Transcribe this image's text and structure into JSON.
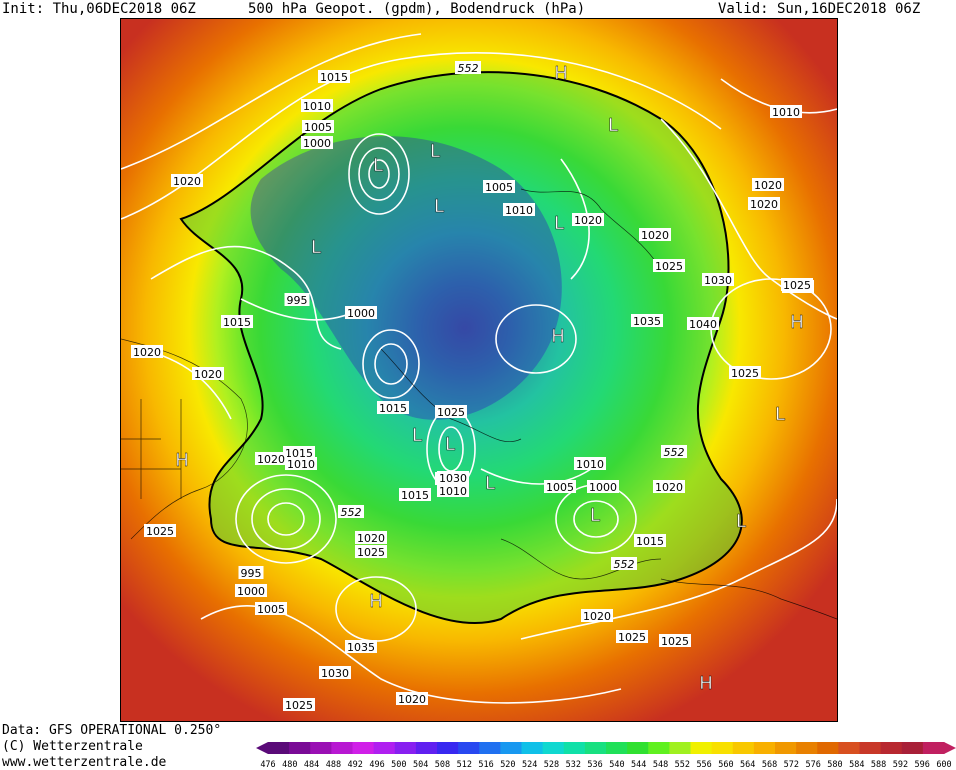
{
  "header": {
    "init": "Init: Thu,06DEC2018 06Z",
    "title": "500 hPa Geopot. (gpdm), Bodendruck (hPa)",
    "valid": "Valid: Sun,16DEC2018 06Z"
  },
  "footer": {
    "data_line": "Data: GFS OPERATIONAL 0.250°",
    "copyright": "(C) Wetterzentrale",
    "website": "www.wetterzentrale.de"
  },
  "pressure_labels": [
    {
      "text": "1015"
    },
    {
      "text": "1010"
    },
    {
      "text": "1005"
    },
    {
      "text": "1000"
    },
    {
      "text": "995"
    },
    {
      "text": "1020"
    },
    {
      "text": "1005"
    },
    {
      "text": "1010"
    },
    {
      "text": "1020"
    },
    {
      "text": "1020"
    },
    {
      "text": "1020"
    },
    {
      "text": "1025"
    },
    {
      "text": "1030"
    },
    {
      "text": "1040"
    },
    {
      "text": "1035"
    },
    {
      "text": "1025"
    },
    {
      "text": "1020"
    },
    {
      "text": "1015"
    },
    {
      "text": "995"
    },
    {
      "text": "1000"
    },
    {
      "text": "1020"
    },
    {
      "text": "1015"
    },
    {
      "text": "1025"
    },
    {
      "text": "1030"
    },
    {
      "text": "1010"
    },
    {
      "text": "1015"
    },
    {
      "text": "1010"
    },
    {
      "text": "1005"
    },
    {
      "text": "1000"
    },
    {
      "text": "1030"
    },
    {
      "text": "1020"
    },
    {
      "text": "1015"
    },
    {
      "text": "1020"
    },
    {
      "text": "1010"
    },
    {
      "text": "1025"
    },
    {
      "text": "995"
    },
    {
      "text": "1000"
    },
    {
      "text": "1005"
    },
    {
      "text": "1020"
    },
    {
      "text": "1025"
    },
    {
      "text": "1035"
    },
    {
      "text": "1030"
    },
    {
      "text": "1025"
    },
    {
      "text": "1020"
    },
    {
      "text": "1020"
    },
    {
      "text": "1025"
    },
    {
      "text": "1025"
    },
    {
      "text": "1020"
    },
    {
      "text": "1025"
    },
    {
      "text": "1015"
    },
    {
      "text": "1020"
    },
    {
      "text": "1010"
    }
  ],
  "geopotential_labels": [
    {
      "text": "552"
    },
    {
      "text": "552"
    },
    {
      "text": "552"
    },
    {
      "text": "552"
    }
  ],
  "pressure_centers": [
    {
      "text": "H"
    },
    {
      "text": "L"
    },
    {
      "text": "L"
    },
    {
      "text": "L"
    },
    {
      "text": "L"
    },
    {
      "text": "L"
    },
    {
      "text": "L"
    },
    {
      "text": "H"
    },
    {
      "text": "H"
    },
    {
      "text": "L"
    },
    {
      "text": "H"
    },
    {
      "text": "L"
    },
    {
      "text": "L"
    },
    {
      "text": "L"
    },
    {
      "text": "L"
    },
    {
      "text": "L"
    },
    {
      "text": "H"
    },
    {
      "text": "H"
    }
  ],
  "colorbar": {
    "ticks": [
      "476",
      "480",
      "484",
      "488",
      "492",
      "496",
      "500",
      "504",
      "508",
      "512",
      "516",
      "520",
      "524",
      "528",
      "532",
      "536",
      "540",
      "544",
      "548",
      "552",
      "556",
      "560",
      "564",
      "568",
      "572",
      "576",
      "580",
      "584",
      "588",
      "592",
      "596",
      "600"
    ],
    "colors": [
      "#5a0a78",
      "#7a0a96",
      "#9a10b4",
      "#b818d2",
      "#d020e8",
      "#b020f0",
      "#8820f0",
      "#6020f0",
      "#3828f0",
      "#2848f0",
      "#2070f0",
      "#1898f0",
      "#10c0e8",
      "#10d8d0",
      "#10e0a8",
      "#18e080",
      "#20e058",
      "#30e030",
      "#60f020",
      "#a0f020",
      "#f0f000",
      "#f8e000",
      "#f8c800",
      "#f8b000",
      "#f09800",
      "#e88000",
      "#e06800",
      "#d85020",
      "#c83828",
      "#b82830",
      "#a82038",
      "#c02060"
    ]
  }
}
